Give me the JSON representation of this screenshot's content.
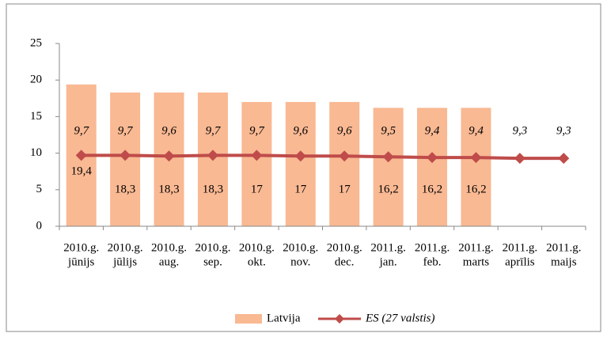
{
  "chart_data": {
    "type": "bar",
    "categories": [
      [
        "2010.g.",
        "jūnijs"
      ],
      [
        "2010.g.",
        "jūlijs"
      ],
      [
        "2010.g.",
        "aug."
      ],
      [
        "2010.g.",
        "sep."
      ],
      [
        "2010.g.",
        "okt."
      ],
      [
        "2010.g.",
        "nov."
      ],
      [
        "2010.g.",
        "dec."
      ],
      [
        "2011.g.",
        "jan."
      ],
      [
        "2011.g.",
        "feb."
      ],
      [
        "2011.g.",
        "marts"
      ],
      [
        "2011.g.",
        "aprīlis"
      ],
      [
        "2011.g.",
        "maijs"
      ]
    ],
    "series": [
      {
        "name": "Latvija",
        "type": "bar",
        "color": "#f9b993",
        "values": [
          19.4,
          18.3,
          18.3,
          18.3,
          17,
          17,
          17,
          16.2,
          16.2,
          16.2,
          null,
          null
        ],
        "value_labels": [
          "19,4",
          "18,3",
          "18,3",
          "18,3",
          "17",
          "17",
          "17",
          "16,2",
          "16,2",
          "16,2",
          null,
          null
        ]
      },
      {
        "name": "ES (27 valstis)",
        "type": "line",
        "color": "#bf4c4a",
        "values": [
          9.7,
          9.7,
          9.6,
          9.7,
          9.7,
          9.6,
          9.6,
          9.5,
          9.4,
          9.4,
          9.3,
          9.3
        ],
        "value_labels": [
          "9,7",
          "9,7",
          "9,6",
          "9,7",
          "9,7",
          "9,6",
          "9,6",
          "9,5",
          "9,4",
          "9,4",
          "9,3",
          "9,3"
        ]
      }
    ],
    "ylim": [
      0,
      25
    ],
    "yticks": [
      0,
      5,
      10,
      15,
      20,
      25
    ],
    "grid": false,
    "legend": "bottom"
  }
}
